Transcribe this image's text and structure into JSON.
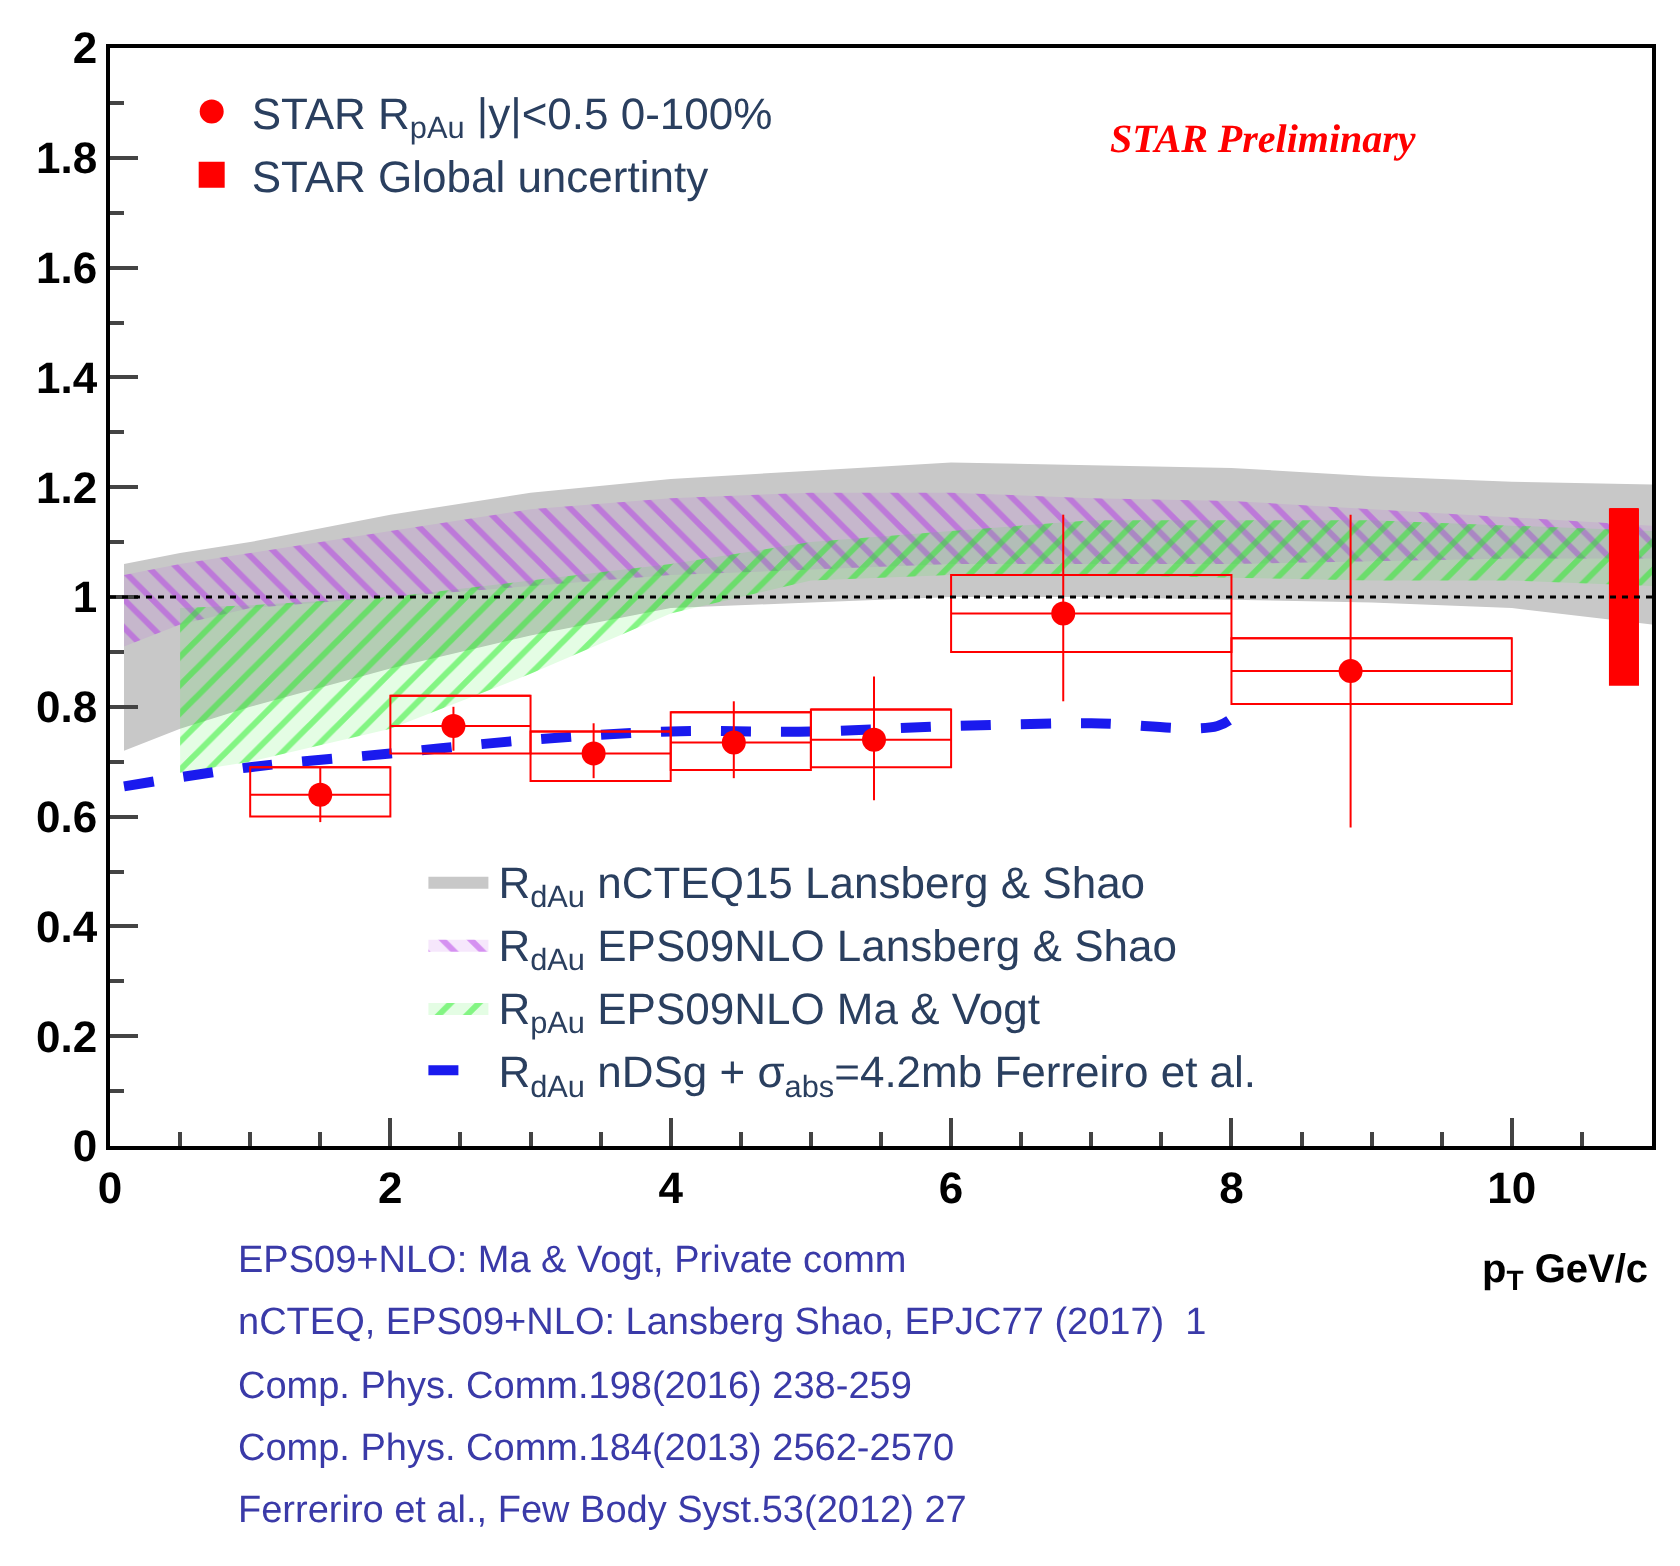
{
  "chart_data": {
    "type": "scatter",
    "xlabel": "p$_{T}$ GeV/c",
    "xlim": [
      0,
      11
    ],
    "xticks": [
      0,
      2,
      4,
      6,
      8,
      10
    ],
    "ylim": [
      0,
      2
    ],
    "yticks": [
      0,
      0.2,
      0.4,
      0.6,
      0.8,
      1,
      1.2,
      1.4,
      1.6,
      1.8,
      2
    ],
    "legend": "left",
    "ref_lines": [
      {
        "axis": "y",
        "value": 1,
        "color": "#000000",
        "line_style": "dotted"
      }
    ],
    "annotations": [
      "STAR Preliminary",
      "EPS09+NLO: Ma & Vogt, Private comm",
      "nCTEQ, EPS09+NLO: Lansberg Shao, EPJC77 (2017)  1",
      "Comp. Phys. Comm.198(2016) 238-259",
      "Comp. Phys. Comm.184(2013) 2562-2570",
      "Ferreriro et al., Few Body Syst.53(2012) 27"
    ],
    "series": [
      {
        "type": "line",
        "name": "R$_{dAu}$ nCTEQ15 Lansberg & Shao",
        "color": "#c8c8c8",
        "x": [
          0.1,
          0.5,
          1,
          2,
          3,
          4,
          5,
          6,
          7,
          8,
          9,
          10,
          11
        ],
        "values": [
          null,
          null,
          null,
          null,
          null,
          null,
          null,
          null,
          null,
          null,
          null,
          null,
          null
        ],
        "lower": [
          0.72,
          0.76,
          0.8,
          0.87,
          0.93,
          0.98,
          0.99,
          1.0,
          1.0,
          0.995,
          0.99,
          0.98,
          0.95
        ],
        "upper": [
          1.06,
          1.08,
          1.1,
          1.15,
          1.19,
          1.215,
          1.23,
          1.245,
          1.24,
          1.235,
          1.22,
          1.21,
          1.205
        ]
      },
      {
        "type": "line",
        "name": "R$_{dAu}$ EPS09NLO Lansberg & Shao",
        "color": "#b43ce6",
        "x": [
          0.1,
          0.5,
          1,
          2,
          3,
          4,
          5,
          6,
          7,
          8,
          9,
          10,
          11
        ],
        "values": [
          null,
          null,
          null,
          null,
          null,
          null,
          null,
          null,
          null,
          null,
          null,
          null,
          null
        ],
        "lower": [
          0.91,
          0.95,
          0.98,
          1.0,
          1.02,
          1.04,
          1.05,
          1.06,
          1.06,
          1.06,
          1.065,
          1.07,
          1.07
        ],
        "upper": [
          1.04,
          1.06,
          1.08,
          1.12,
          1.16,
          1.18,
          1.19,
          1.19,
          1.18,
          1.175,
          1.16,
          1.145,
          1.13
        ]
      },
      {
        "type": "line",
        "name": "R$_{pAu}$ EPS09NLO Ma & Vogt",
        "color": "#22ee22",
        "x": [
          0.5,
          1,
          2,
          3,
          4,
          5,
          6,
          7,
          8,
          9,
          10,
          11
        ],
        "values": [
          null,
          null,
          null,
          null,
          null,
          null,
          null,
          null,
          null,
          null,
          null,
          null
        ],
        "lower": [
          0.68,
          0.7,
          0.76,
          0.86,
          0.97,
          1.03,
          1.04,
          1.04,
          1.035,
          1.03,
          1.03,
          1.02
        ],
        "upper": [
          0.98,
          0.985,
          1.0,
          1.03,
          1.06,
          1.1,
          1.12,
          1.14,
          1.14,
          1.14,
          1.13,
          1.12
        ]
      },
      {
        "type": "line",
        "name": "R$_{dAu}$ nDSg + σ$_{abs}$=4.2mb Ferreiro et al.",
        "color": "#1a1aee",
        "line_style": "dashed",
        "x": [
          0.1,
          1,
          2,
          3,
          4,
          5,
          6,
          7,
          7.9,
          8.05
        ],
        "values": [
          0.655,
          0.69,
          0.715,
          0.74,
          0.755,
          0.755,
          0.765,
          0.77,
          0.765,
          0.79
        ]
      },
      {
        "type": "bar",
        "color": "#ff0000",
        "x": [
          1.5,
          2.5,
          3.5,
          4.5,
          5.5,
          7,
          9
        ],
        "base": [
          0.6,
          0.715,
          0.665,
          0.685,
          0.69,
          0.9,
          0.805
        ],
        "values": [
          0.09,
          0.105,
          0.09,
          0.105,
          0.105,
          0.14,
          0.12
        ],
        "xerrors": [
          0.5,
          0.5,
          0.5,
          0.5,
          0.5,
          1,
          1
        ]
      },
      {
        "name": "STAR R$_{pAu}$ |y|<0.5 0-100%",
        "color": "#ff0000",
        "marker": "circle",
        "x": [
          1.5,
          2.45,
          3.45,
          4.45,
          5.45,
          6.8,
          8.85
        ],
        "values": [
          0.64,
          0.765,
          0.715,
          0.735,
          0.74,
          0.97,
          0.865
        ],
        "errors": [
          [
            0.59,
            0.69
          ],
          [
            0.72,
            0.8
          ],
          [
            0.67,
            0.77
          ],
          [
            0.67,
            0.81
          ],
          [
            0.63,
            0.855
          ],
          [
            0.81,
            1.15
          ],
          [
            0.58,
            1.15
          ]
        ],
        "xerrors": [
          [
            1,
            2
          ],
          [
            2,
            3
          ],
          [
            3,
            4
          ],
          [
            4,
            5
          ],
          [
            5,
            6
          ],
          [
            6,
            8
          ],
          [
            8,
            10
          ]
        ]
      },
      {
        "type": "bar",
        "name": "STAR Global uncertinty",
        "color": "#ff0000",
        "x": [
          10.8
        ],
        "base": [
          0.84
        ],
        "values": [
          0.32
        ],
        "xerrors": [
          0.1
        ]
      }
    ]
  }
}
